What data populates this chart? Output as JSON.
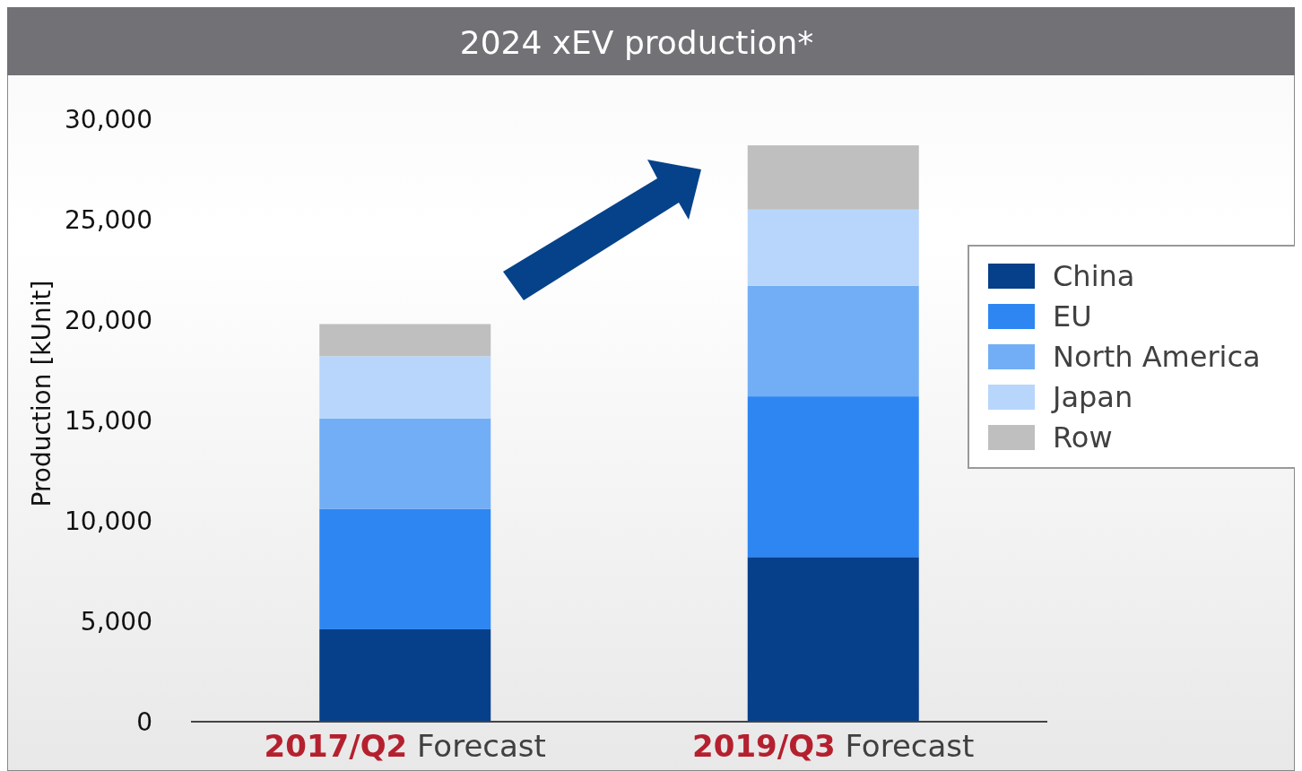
{
  "chart_data": {
    "type": "bar",
    "title": "2024 xEV production*",
    "ylabel": "Production [kUnit]",
    "categories": [
      "2017/Q2 Forecast",
      "2019/Q3 Forecast"
    ],
    "stacked": true,
    "series": [
      {
        "name": "China",
        "color": "#063f8a",
        "values": [
          4600,
          8200
        ]
      },
      {
        "name": "EU",
        "color": "#2e86f2",
        "values": [
          6000,
          8000
        ]
      },
      {
        "name": "North America",
        "color": "#72aef5",
        "values": [
          4500,
          5500
        ]
      },
      {
        "name": "Japan",
        "color": "#b8d6fb",
        "values": [
          3100,
          3800
        ]
      },
      {
        "name": "Row",
        "color": "#bfbfbf",
        "values": [
          1600,
          3200
        ]
      }
    ],
    "ylim": [
      0,
      30000
    ],
    "yticks": [
      {
        "value": 0,
        "label": "0"
      },
      {
        "value": 5000,
        "label": "5,000"
      },
      {
        "value": 10000,
        "label": "10,000"
      },
      {
        "value": 15000,
        "label": "15,000"
      },
      {
        "value": 20000,
        "label": "20,000"
      },
      {
        "value": 25000,
        "label": "25,000"
      },
      {
        "value": 30000,
        "label": "30,000"
      }
    ],
    "grid": false,
    "legend": "right"
  }
}
